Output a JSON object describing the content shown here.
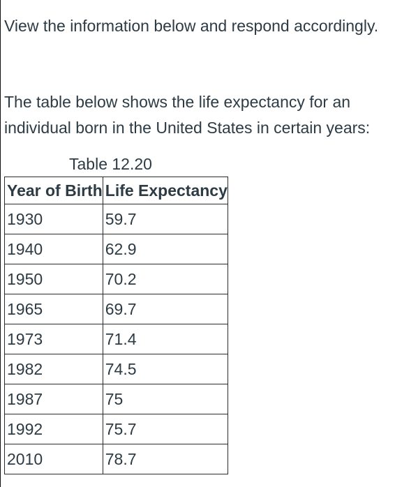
{
  "instruction": "View the information below and respond accordingly.",
  "intro": "The table below shows the life expectancy for an individual born in the United States in certain years:",
  "table": {
    "caption": "Table 12.20",
    "headers": [
      "Year of Birth",
      "Life Expectancy"
    ],
    "rows": [
      [
        "1930",
        "59.7"
      ],
      [
        "1940",
        "62.9"
      ],
      [
        "1950",
        "70.2"
      ],
      [
        "1965",
        "69.7"
      ],
      [
        "1973",
        "71.4"
      ],
      [
        "1982",
        "74.5"
      ],
      [
        "1987",
        "75"
      ],
      [
        "1992",
        "75.7"
      ],
      [
        "2010",
        "78.7"
      ]
    ]
  }
}
